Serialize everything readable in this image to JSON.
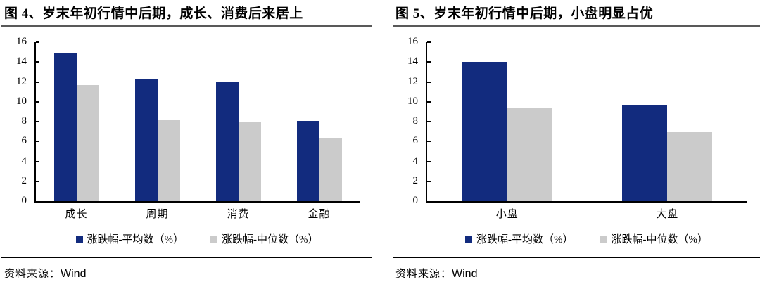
{
  "page": {
    "background": "#FFFFFF",
    "accent_blue": "#122B7E",
    "bar_gray": "#CBCBCB",
    "title_rule_color": "#595959",
    "source_rule_color": "#000000"
  },
  "chart_data": [
    {
      "type": "bar",
      "title": "图 4、岁末年初行情中后期，成长、消费后来居上",
      "categories": [
        "成长",
        "周期",
        "消费",
        "金融"
      ],
      "series": [
        {
          "name": "涨跌幅-平均数（%）",
          "color": "#122B7E",
          "values": [
            14.9,
            12.3,
            12.0,
            8.1
          ]
        },
        {
          "name": "涨跌幅-中位数（%）",
          "color": "#CBCBCB",
          "values": [
            11.7,
            8.2,
            8.0,
            6.4
          ]
        }
      ],
      "ylim": [
        0,
        16
      ],
      "ytick_step": 2,
      "yticks": [
        0,
        2,
        4,
        6,
        8,
        10,
        12,
        14,
        16
      ],
      "grid": false,
      "legend_position": "bottom",
      "source_prefix": "资料来源：",
      "source_name": "Wind"
    },
    {
      "type": "bar",
      "title": "图 5、岁末年初行情中后期，小盘明显占优",
      "categories": [
        "小盘",
        "大盘"
      ],
      "series": [
        {
          "name": "涨跌幅-平均数（%）",
          "color": "#122B7E",
          "values": [
            14.0,
            9.7
          ]
        },
        {
          "name": "涨跌幅-中位数（%）",
          "color": "#CBCBCB",
          "values": [
            9.4,
            7.0
          ]
        }
      ],
      "ylim": [
        0,
        16
      ],
      "ytick_step": 2,
      "yticks": [
        0,
        2,
        4,
        6,
        8,
        10,
        12,
        14,
        16
      ],
      "grid": false,
      "legend_position": "bottom",
      "source_prefix": "资料来源：",
      "source_name": "Wind"
    }
  ]
}
